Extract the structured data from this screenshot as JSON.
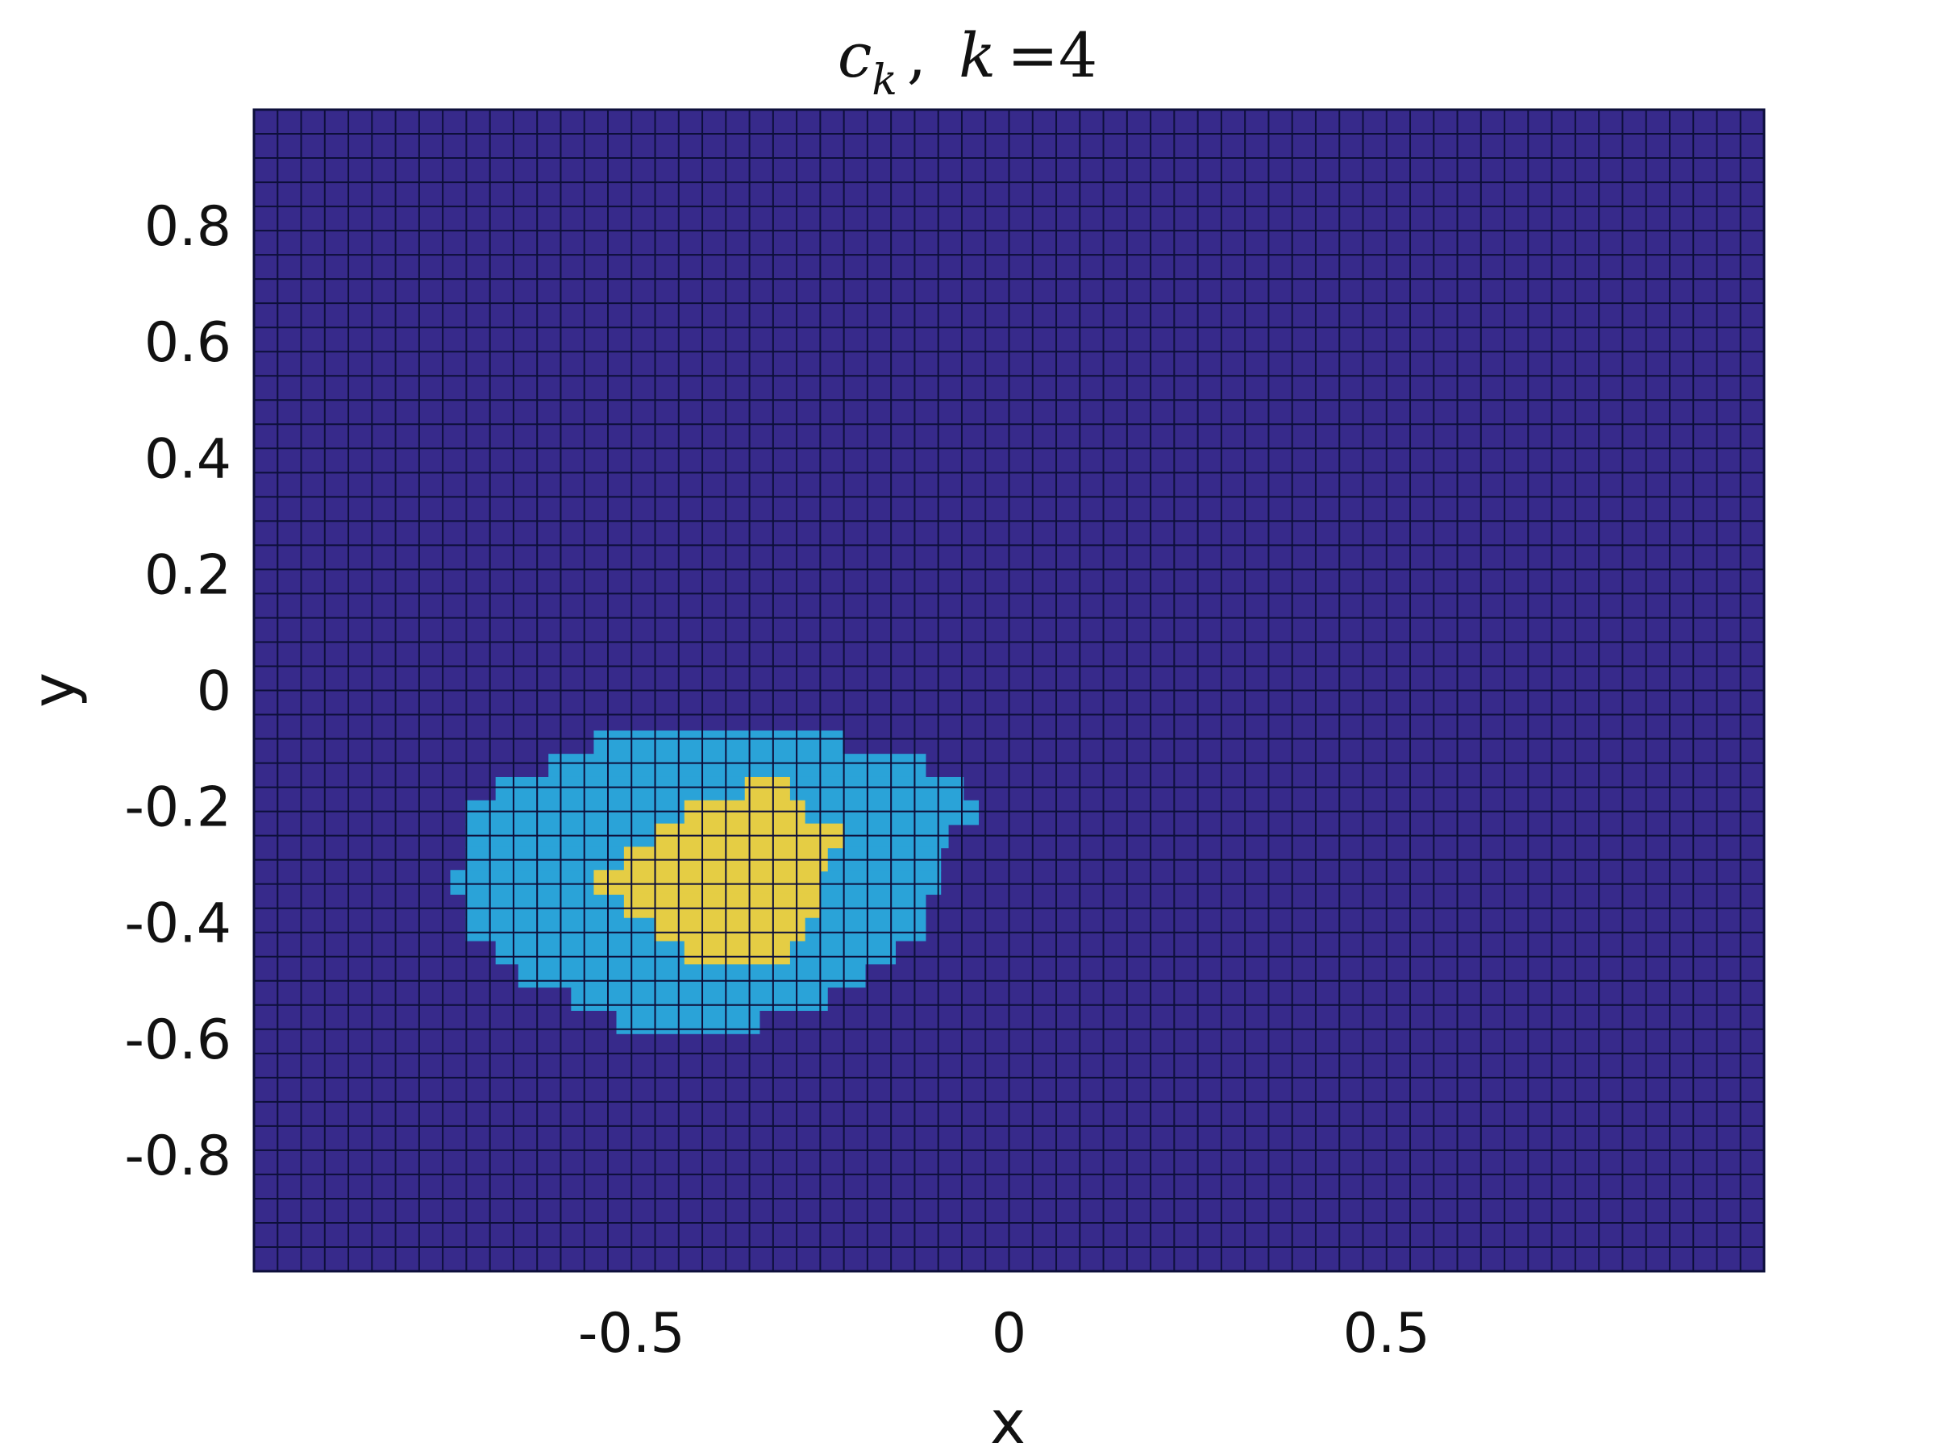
{
  "chart_data": {
    "type": "heatmap",
    "title": "c_k ,  k =4",
    "title_parts": {
      "c": "c",
      "sub": "k",
      "sep": ",",
      "k": "k",
      "eq": "=4"
    },
    "xlabel": "x",
    "ylabel": "y",
    "xlim": [
      -1,
      1
    ],
    "ylim": [
      -1,
      1
    ],
    "x_ticks": [
      -0.5,
      0,
      0.5
    ],
    "x_tick_labels": [
      "-0.5",
      "0",
      "0.5"
    ],
    "y_ticks": [
      0.8,
      0.6,
      0.4,
      0.2,
      0,
      -0.2,
      -0.4,
      -0.6,
      -0.8
    ],
    "y_tick_labels": [
      "0.8",
      "0.6",
      "0.4",
      "0.2",
      "0",
      "-0.2",
      "-0.4",
      "-0.6",
      "-0.8"
    ],
    "grid_cells": [
      64,
      48
    ],
    "colors": {
      "background": "#372a8b",
      "edge": "#0d0f3a",
      "dark_teal": "#2787c2",
      "light_teal": "#2aa3d8",
      "yellow": "#e5cd44"
    },
    "regions": [
      {
        "name": "outer",
        "color": "light_teal",
        "rows": [
          {
            "y": -0.09,
            "x0": -0.55,
            "x1": -0.22
          },
          {
            "y": -0.13,
            "x0": -0.61,
            "x1": -0.11
          },
          {
            "y": -0.17,
            "x0": -0.68,
            "x1": -0.06
          },
          {
            "y": -0.21,
            "x0": -0.72,
            "x1": -0.04
          },
          {
            "y": -0.25,
            "x0": -0.72,
            "x1": -0.08
          },
          {
            "y": -0.29,
            "x0": -0.72,
            "x1": -0.09
          },
          {
            "y": -0.33,
            "x0": -0.74,
            "x1": -0.09
          },
          {
            "y": -0.37,
            "x0": -0.72,
            "x1": -0.11
          },
          {
            "y": -0.41,
            "x0": -0.72,
            "x1": -0.11
          },
          {
            "y": -0.45,
            "x0": -0.68,
            "x1": -0.15
          },
          {
            "y": -0.49,
            "x0": -0.65,
            "x1": -0.19
          },
          {
            "y": -0.53,
            "x0": -0.58,
            "x1": -0.24
          },
          {
            "y": -0.57,
            "x0": -0.52,
            "x1": -0.33
          }
        ]
      },
      {
        "name": "inner",
        "color": "yellow",
        "rows": [
          {
            "y": -0.17,
            "x0": -0.35,
            "x1": -0.29
          },
          {
            "y": -0.21,
            "x0": -0.43,
            "x1": -0.27
          },
          {
            "y": -0.25,
            "x0": -0.47,
            "x1": -0.22
          },
          {
            "y": -0.29,
            "x0": -0.51,
            "x1": -0.24
          },
          {
            "y": -0.33,
            "x0": -0.55,
            "x1": -0.25
          },
          {
            "y": -0.37,
            "x0": -0.51,
            "x1": -0.25
          },
          {
            "y": -0.41,
            "x0": -0.47,
            "x1": -0.27
          },
          {
            "y": -0.45,
            "x0": -0.43,
            "x1": -0.29
          }
        ]
      }
    ]
  }
}
